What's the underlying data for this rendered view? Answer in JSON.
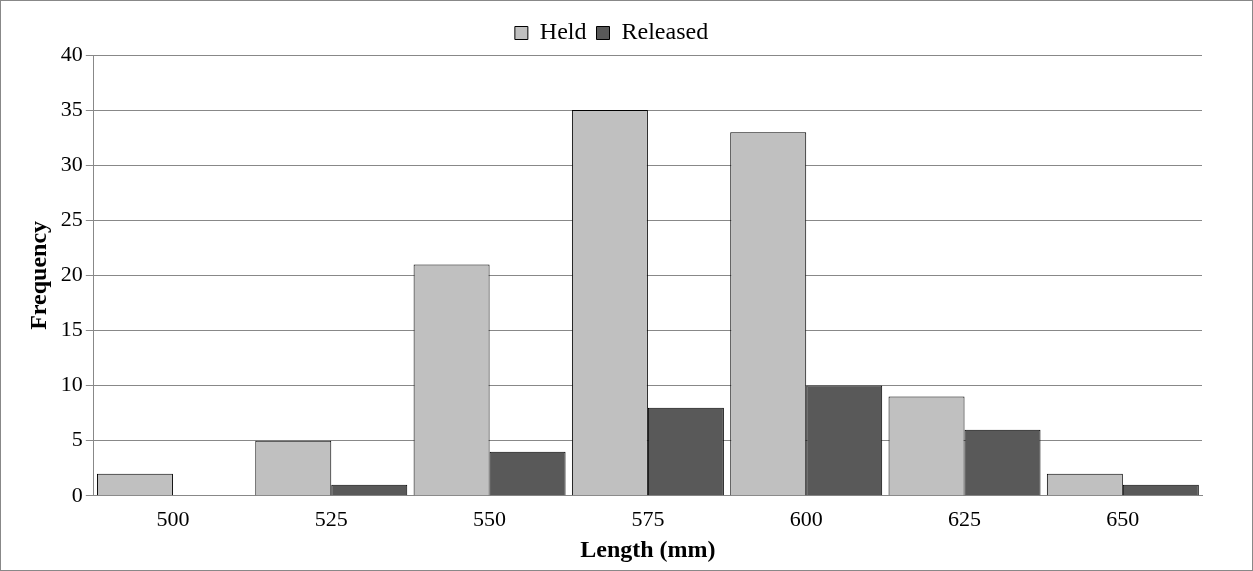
{
  "chart_data": {
    "type": "bar",
    "xlabel": "Length (mm)",
    "ylabel": "Frequency",
    "categories": [
      "500",
      "525",
      "550",
      "575",
      "600",
      "625",
      "650"
    ],
    "series": [
      {
        "name": "Held",
        "color": "#c0c0c0",
        "values": [
          2,
          5,
          21,
          35,
          33,
          9,
          2
        ]
      },
      {
        "name": "Released",
        "color": "#595959",
        "values": [
          0,
          1,
          4,
          8,
          10,
          6,
          1
        ]
      }
    ],
    "ylim": [
      0,
      40
    ],
    "yticks": [
      0,
      5,
      10,
      15,
      20,
      25,
      30,
      35,
      40
    ],
    "grid": "y",
    "legend": "top"
  }
}
